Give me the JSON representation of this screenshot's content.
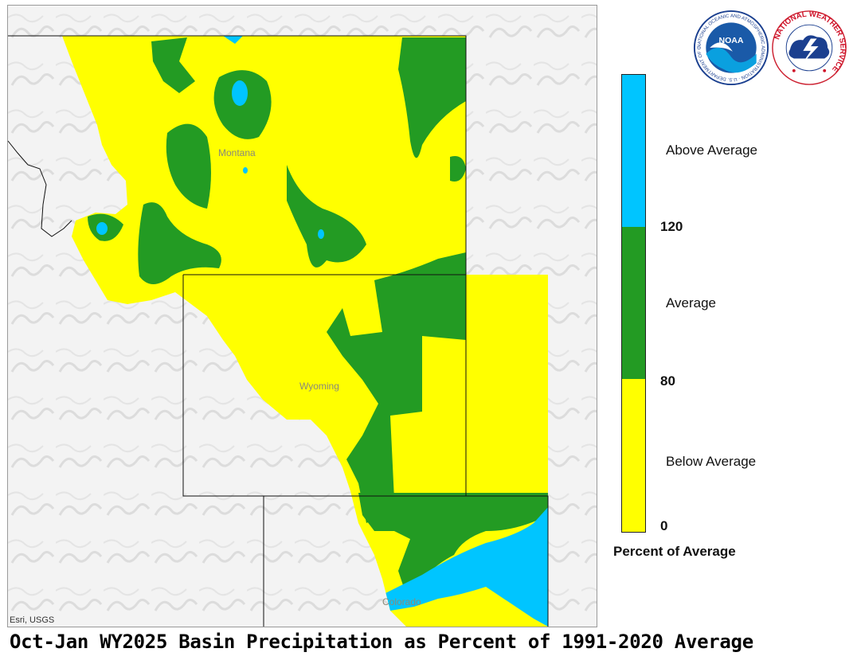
{
  "map": {
    "states": [
      "Montana",
      "Wyoming",
      "Colorado"
    ],
    "attribution": "Esri, USGS"
  },
  "legend": {
    "categories": [
      {
        "label": "Above Average",
        "color": "#00c5ff"
      },
      {
        "label": "Average",
        "color": "#239b23"
      },
      {
        "label": "Below Average",
        "color": "#ffff00"
      }
    ],
    "breaks": [
      "120",
      "80",
      "0"
    ],
    "title": "Percent of Average"
  },
  "title": "Oct-Jan WY2025 Basin Precipitation as Percent of 1991-2020 Average",
  "logos": {
    "noaa": {
      "center_text": "NOAA",
      "ring_text": "NATIONAL OCEANIC AND ATMOSPHERIC ADMINISTRATION · U.S. DEPARTMENT OF COMMERCE"
    },
    "nws": {
      "ring_text": "NATIONAL WEATHER SERVICE"
    }
  }
}
